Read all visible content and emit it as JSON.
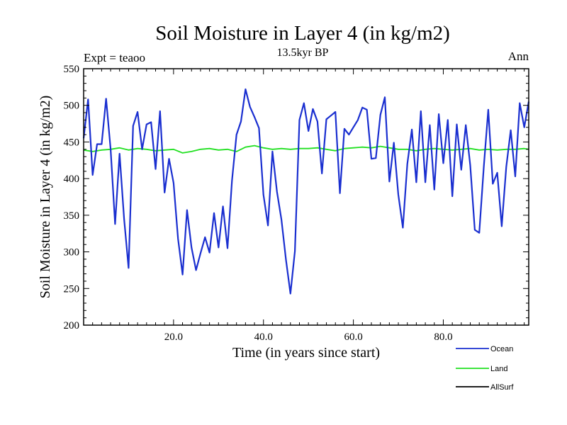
{
  "chart_data": {
    "type": "line",
    "title": "Soil Moisture in Layer 4 (in kg/m2)",
    "subtitle": "13.5kyr BP",
    "expt_label": "Expt = teaoo",
    "season_label": "Ann",
    "xlabel": "Time (in years since start)",
    "ylabel": "Soil Moisture in Layer 4 (in kg/m2)",
    "xlim": [
      0,
      99
    ],
    "ylim": [
      200,
      550
    ],
    "x_ticks": [
      20,
      40,
      60,
      80
    ],
    "x_tick_labels": [
      "20.0",
      "40.0",
      "60.0",
      "80.0"
    ],
    "y_ticks": [
      200,
      250,
      300,
      350,
      400,
      450,
      500,
      550
    ],
    "y_tick_labels": [
      "200",
      "250",
      "300",
      "350",
      "400",
      "450",
      "500",
      "550"
    ],
    "series": [
      {
        "name": "Ocean",
        "color": "#1a2fd0",
        "x": [
          0,
          1,
          2,
          3,
          4,
          5,
          6,
          7,
          8,
          9,
          10,
          11,
          12,
          13,
          14,
          15,
          16,
          17,
          18,
          19,
          20,
          21,
          22,
          23,
          24,
          25,
          26,
          27,
          28,
          29,
          30,
          31,
          32,
          33,
          34,
          35,
          36,
          37,
          38,
          39,
          40,
          41,
          42,
          43,
          44,
          45,
          46,
          47,
          48,
          49,
          50,
          51,
          52,
          53,
          54,
          55,
          56,
          57,
          58,
          59,
          60,
          61,
          62,
          63,
          64,
          65,
          66,
          67,
          68,
          69,
          70,
          71,
          72,
          73,
          74,
          75,
          76,
          77,
          78,
          79,
          80,
          81,
          82,
          83,
          84,
          85,
          86,
          87,
          88,
          89,
          90,
          91,
          92,
          93,
          94,
          95,
          96,
          97,
          98,
          99
        ],
        "values": [
          455,
          508,
          405,
          447,
          447,
          509,
          440,
          338,
          434,
          345,
          278,
          472,
          491,
          440,
          474,
          477,
          413,
          492,
          381,
          427,
          394,
          318,
          269,
          357,
          306,
          275,
          298,
          320,
          299,
          353,
          306,
          362,
          305,
          397,
          460,
          478,
          522,
          498,
          484,
          469,
          378,
          336,
          437,
          382,
          344,
          289,
          243,
          301,
          480,
          503,
          465,
          495,
          478,
          407,
          481,
          486,
          491,
          380,
          468,
          460,
          470,
          480,
          497,
          494,
          427,
          428,
          487,
          511,
          396,
          449,
          378,
          333,
          420,
          467,
          395,
          492,
          395,
          473,
          385,
          488,
          421,
          480,
          376,
          474,
          412,
          473,
          418,
          330,
          326,
          416,
          494,
          393,
          408,
          335,
          416,
          466,
          403,
          503,
          470,
          505
        ]
      },
      {
        "name": "Land",
        "color": "#22e022",
        "x": [
          0,
          2,
          4,
          6,
          8,
          10,
          12,
          14,
          16,
          18,
          20,
          22,
          24,
          26,
          28,
          30,
          32,
          34,
          36,
          38,
          40,
          42,
          44,
          46,
          48,
          50,
          52,
          54,
          56,
          58,
          60,
          62,
          64,
          66,
          68,
          70,
          72,
          74,
          76,
          78,
          80,
          82,
          84,
          86,
          88,
          90,
          92,
          94,
          96,
          98,
          99
        ],
        "values": [
          439,
          437,
          439,
          440,
          442,
          439,
          441,
          440,
          438,
          439,
          440,
          435,
          437,
          440,
          441,
          439,
          440,
          437,
          443,
          445,
          442,
          440,
          441,
          440,
          441,
          441,
          442,
          440,
          438,
          441,
          442,
          443,
          442,
          444,
          442,
          440,
          440,
          438,
          440,
          441,
          440,
          439,
          440,
          441,
          439,
          440,
          439,
          440,
          440,
          441,
          440
        ]
      },
      {
        "name": "AllSurf",
        "color": "#000000",
        "x": [],
        "values": []
      }
    ],
    "legend_position": "bottom-right"
  }
}
